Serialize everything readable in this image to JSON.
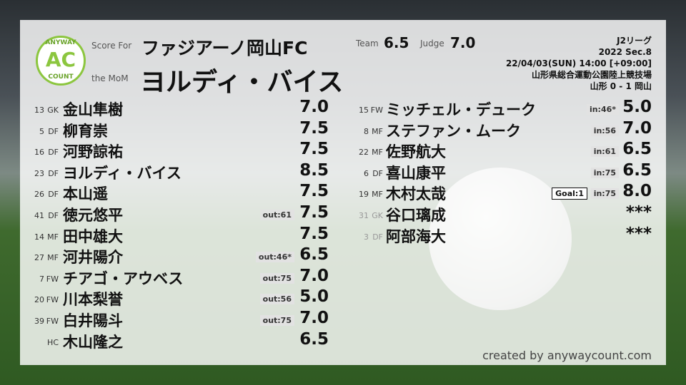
{
  "header": {
    "logo_top": "ANYWAY",
    "logo_mid": "AC",
    "logo_bottom": "COUNT",
    "score_for_label": "Score For",
    "team": "ファジアーノ岡山FC",
    "mom_label": "the MoM",
    "mom": "ヨルディ・バイス",
    "team_label": "Team",
    "team_score": "6.5",
    "judge_label": "Judge",
    "judge_score": "7.0",
    "league": "J2リーグ",
    "season": "2022 Sec.8",
    "datetime": "22/04/03(SUN) 14:00 [+09:00]",
    "venue": "山形県総合運動公園陸上競技場",
    "result": "山形 0 - 1 岡山"
  },
  "lineup": [
    {
      "number": "13",
      "position": "GK",
      "name": "金山隼樹",
      "score": "7.0"
    },
    {
      "number": "5",
      "position": "DF",
      "name": "柳育崇",
      "score": "7.5"
    },
    {
      "number": "16",
      "position": "DF",
      "name": "河野諒祐",
      "score": "7.5"
    },
    {
      "number": "23",
      "position": "DF",
      "name": "ヨルディ・バイス",
      "score": "8.5"
    },
    {
      "number": "26",
      "position": "DF",
      "name": "本山遥",
      "score": "7.5"
    },
    {
      "number": "41",
      "position": "DF",
      "name": "徳元悠平",
      "sub": "out:61",
      "score": "7.5"
    },
    {
      "number": "14",
      "position": "MF",
      "name": "田中雄大",
      "score": "7.5"
    },
    {
      "number": "27",
      "position": "MF",
      "name": "河井陽介",
      "sub": "out:46*",
      "score": "6.5"
    },
    {
      "number": "7",
      "position": "FW",
      "name": "チアゴ・アウベス",
      "sub": "out:75",
      "score": "7.0"
    },
    {
      "number": "20",
      "position": "FW",
      "name": "川本梨誉",
      "sub": "out:56",
      "score": "5.0"
    },
    {
      "number": "39",
      "position": "FW",
      "name": "白井陽斗",
      "sub": "out:75",
      "score": "7.0"
    },
    {
      "position": "HC",
      "name": "木山隆之",
      "score": "6.5"
    }
  ],
  "substitutes": [
    {
      "number": "15",
      "position": "FW",
      "name": "ミッチェル・デューク",
      "sub": "in:46*",
      "score": "5.0"
    },
    {
      "number": "8",
      "position": "MF",
      "name": "ステファン・ムーク",
      "sub": "in:56",
      "score": "7.0"
    },
    {
      "number": "22",
      "position": "MF",
      "name": "佐野航大",
      "sub": "in:61",
      "score": "6.5"
    },
    {
      "number": "6",
      "position": "DF",
      "name": "喜山康平",
      "sub": "in:75",
      "score": "6.5"
    },
    {
      "number": "19",
      "position": "MF",
      "name": "木村太哉",
      "goal": "Goal:1",
      "sub": "in:75",
      "score": "8.0"
    },
    {
      "number": "31",
      "position": "GK",
      "name": "谷口璃成",
      "score": "***"
    },
    {
      "number": "3",
      "position": "DF",
      "name": "阿部海大",
      "score": "***"
    }
  ],
  "footer": "created by anywaycount.com"
}
